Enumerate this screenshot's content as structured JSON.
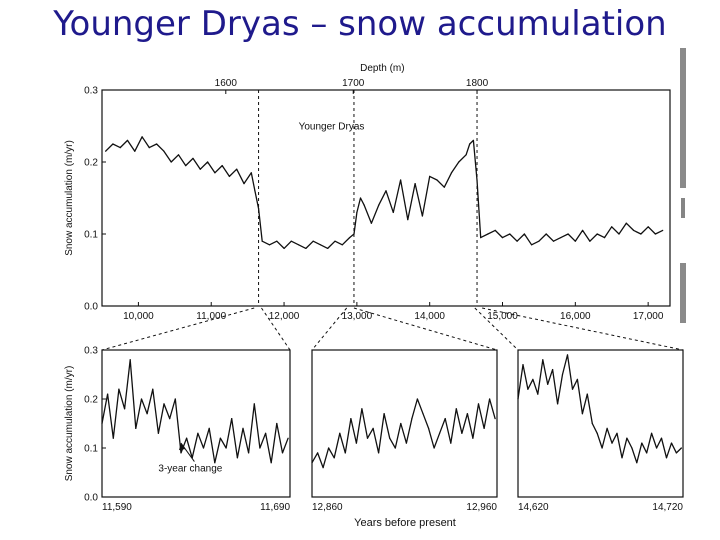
{
  "slide": {
    "title": "Younger Dryas – snow accumulation"
  },
  "chart_data": [
    {
      "type": "line",
      "name": "main",
      "title": "",
      "top_axis": {
        "label": "Depth (m)",
        "ticks": [
          {
            "x": 11200,
            "label": "1600"
          },
          {
            "x": 12950,
            "label": "1700"
          },
          {
            "x": 14650,
            "label": "1800"
          }
        ]
      },
      "xlabel": "",
      "ylabel": "Snow accumulation (m/yr)",
      "xlim": [
        9500,
        17300
      ],
      "ylim": [
        0.0,
        0.3
      ],
      "x_ticks": [
        {
          "x": 10000,
          "label": "10,000"
        },
        {
          "x": 11000,
          "label": "11,000"
        },
        {
          "x": 12000,
          "label": "12,000"
        },
        {
          "x": 13000,
          "label": "13,000"
        },
        {
          "x": 14000,
          "label": "14,000"
        },
        {
          "x": 15000,
          "label": "15,000"
        },
        {
          "x": 16000,
          "label": "16,000"
        },
        {
          "x": 17000,
          "label": "17,000"
        }
      ],
      "y_ticks": [
        {
          "y": 0.0,
          "label": "0.0"
        },
        {
          "y": 0.1,
          "label": "0.1"
        },
        {
          "y": 0.2,
          "label": "0.2"
        },
        {
          "y": 0.3,
          "label": "0.3"
        }
      ],
      "vlines": [
        11650,
        12960,
        14650
      ],
      "annotations": [
        {
          "x": 12200,
          "y": 0.245,
          "text": "Younger Dryas"
        }
      ],
      "x": [
        9550,
        9650,
        9750,
        9850,
        9950,
        10050,
        10150,
        10250,
        10350,
        10450,
        10550,
        10650,
        10750,
        10850,
        10950,
        11050,
        11150,
        11250,
        11350,
        11450,
        11550,
        11600,
        11650,
        11700,
        11800,
        11900,
        12000,
        12100,
        12200,
        12300,
        12400,
        12500,
        12600,
        12700,
        12800,
        12900,
        12960,
        13000,
        13050,
        13100,
        13200,
        13300,
        13400,
        13500,
        13600,
        13700,
        13800,
        13900,
        14000,
        14100,
        14200,
        14300,
        14400,
        14500,
        14550,
        14600,
        14650,
        14700,
        14800,
        14900,
        15000,
        15100,
        15200,
        15300,
        15400,
        15500,
        15600,
        15700,
        15800,
        15900,
        16000,
        16100,
        16200,
        16300,
        16400,
        16500,
        16600,
        16700,
        16800,
        16900,
        17000,
        17100,
        17200
      ],
      "y": [
        0.215,
        0.225,
        0.22,
        0.23,
        0.215,
        0.235,
        0.22,
        0.225,
        0.215,
        0.2,
        0.21,
        0.195,
        0.205,
        0.19,
        0.2,
        0.185,
        0.195,
        0.18,
        0.19,
        0.17,
        0.185,
        0.16,
        0.135,
        0.09,
        0.085,
        0.09,
        0.08,
        0.09,
        0.085,
        0.08,
        0.09,
        0.085,
        0.08,
        0.09,
        0.085,
        0.095,
        0.1,
        0.13,
        0.15,
        0.14,
        0.115,
        0.14,
        0.16,
        0.13,
        0.175,
        0.12,
        0.17,
        0.125,
        0.18,
        0.175,
        0.165,
        0.185,
        0.2,
        0.21,
        0.225,
        0.23,
        0.175,
        0.095,
        0.1,
        0.105,
        0.095,
        0.1,
        0.09,
        0.1,
        0.085,
        0.09,
        0.1,
        0.09,
        0.095,
        0.1,
        0.09,
        0.105,
        0.09,
        0.1,
        0.095,
        0.11,
        0.1,
        0.115,
        0.105,
        0.1,
        0.11,
        0.1,
        0.105
      ]
    },
    {
      "type": "line",
      "name": "inset-1",
      "xlim": [
        11590,
        11690
      ],
      "ylim": [
        0.0,
        0.3
      ],
      "x_ticks": [
        {
          "x": 11590,
          "label": "11,590"
        },
        {
          "x": 11690,
          "label": "11,690"
        }
      ],
      "y_ticks": [
        {
          "y": 0.0,
          "label": "0.0"
        },
        {
          "y": 0.1,
          "label": "0.1"
        },
        {
          "y": 0.2,
          "label": "0.2"
        },
        {
          "y": 0.3,
          "label": "0.3"
        }
      ],
      "ylabel": "Snow accumulation (m/yr)",
      "annotations": [
        {
          "x": 11620,
          "y": 0.052,
          "text": "3-year change",
          "arrow_to": {
            "x": 11632,
            "y": 0.11
          }
        }
      ],
      "x": [
        11590,
        11593,
        11596,
        11599,
        11602,
        11605,
        11608,
        11611,
        11614,
        11617,
        11620,
        11623,
        11626,
        11629,
        11632,
        11635,
        11638,
        11641,
        11644,
        11647,
        11650,
        11653,
        11656,
        11659,
        11662,
        11665,
        11668,
        11671,
        11674,
        11677,
        11680,
        11683,
        11686,
        11689
      ],
      "y": [
        0.15,
        0.21,
        0.12,
        0.22,
        0.18,
        0.28,
        0.14,
        0.2,
        0.17,
        0.22,
        0.13,
        0.19,
        0.16,
        0.2,
        0.09,
        0.12,
        0.08,
        0.13,
        0.1,
        0.14,
        0.07,
        0.12,
        0.1,
        0.16,
        0.08,
        0.14,
        0.09,
        0.19,
        0.1,
        0.13,
        0.07,
        0.15,
        0.09,
        0.12
      ]
    },
    {
      "type": "line",
      "name": "inset-2",
      "xlim": [
        12860,
        12960
      ],
      "ylim": [
        0.0,
        0.3
      ],
      "x_ticks": [
        {
          "x": 12860,
          "label": "12,860"
        },
        {
          "x": 12960,
          "label": "12,960"
        }
      ],
      "x": [
        12860,
        12863,
        12866,
        12869,
        12872,
        12875,
        12878,
        12881,
        12884,
        12887,
        12890,
        12893,
        12896,
        12899,
        12902,
        12905,
        12908,
        12911,
        12914,
        12917,
        12920,
        12923,
        12926,
        12929,
        12932,
        12935,
        12938,
        12941,
        12944,
        12947,
        12950,
        12953,
        12956,
        12959
      ],
      "y": [
        0.07,
        0.09,
        0.06,
        0.1,
        0.08,
        0.13,
        0.09,
        0.16,
        0.11,
        0.18,
        0.12,
        0.14,
        0.09,
        0.17,
        0.12,
        0.1,
        0.15,
        0.11,
        0.16,
        0.2,
        0.17,
        0.14,
        0.1,
        0.13,
        0.16,
        0.11,
        0.18,
        0.13,
        0.17,
        0.12,
        0.19,
        0.14,
        0.2,
        0.16
      ]
    },
    {
      "type": "line",
      "name": "inset-3",
      "xlim": [
        14620,
        14720
      ],
      "ylim": [
        0.0,
        0.3
      ],
      "x_ticks": [
        {
          "x": 14620,
          "label": "14,620"
        },
        {
          "x": 14720,
          "label": "14,720"
        }
      ],
      "x": [
        14620,
        14623,
        14626,
        14629,
        14632,
        14635,
        14638,
        14641,
        14644,
        14647,
        14650,
        14653,
        14656,
        14659,
        14662,
        14665,
        14668,
        14671,
        14674,
        14677,
        14680,
        14683,
        14686,
        14689,
        14692,
        14695,
        14698,
        14701,
        14704,
        14707,
        14710,
        14713,
        14716,
        14719
      ],
      "y": [
        0.2,
        0.27,
        0.22,
        0.24,
        0.21,
        0.28,
        0.23,
        0.26,
        0.19,
        0.25,
        0.29,
        0.22,
        0.24,
        0.17,
        0.21,
        0.15,
        0.13,
        0.1,
        0.14,
        0.11,
        0.13,
        0.08,
        0.12,
        0.1,
        0.07,
        0.11,
        0.09,
        0.13,
        0.1,
        0.12,
        0.08,
        0.11,
        0.09,
        0.1
      ]
    }
  ],
  "labels": {
    "bottom_xlabel": "Years before present"
  }
}
